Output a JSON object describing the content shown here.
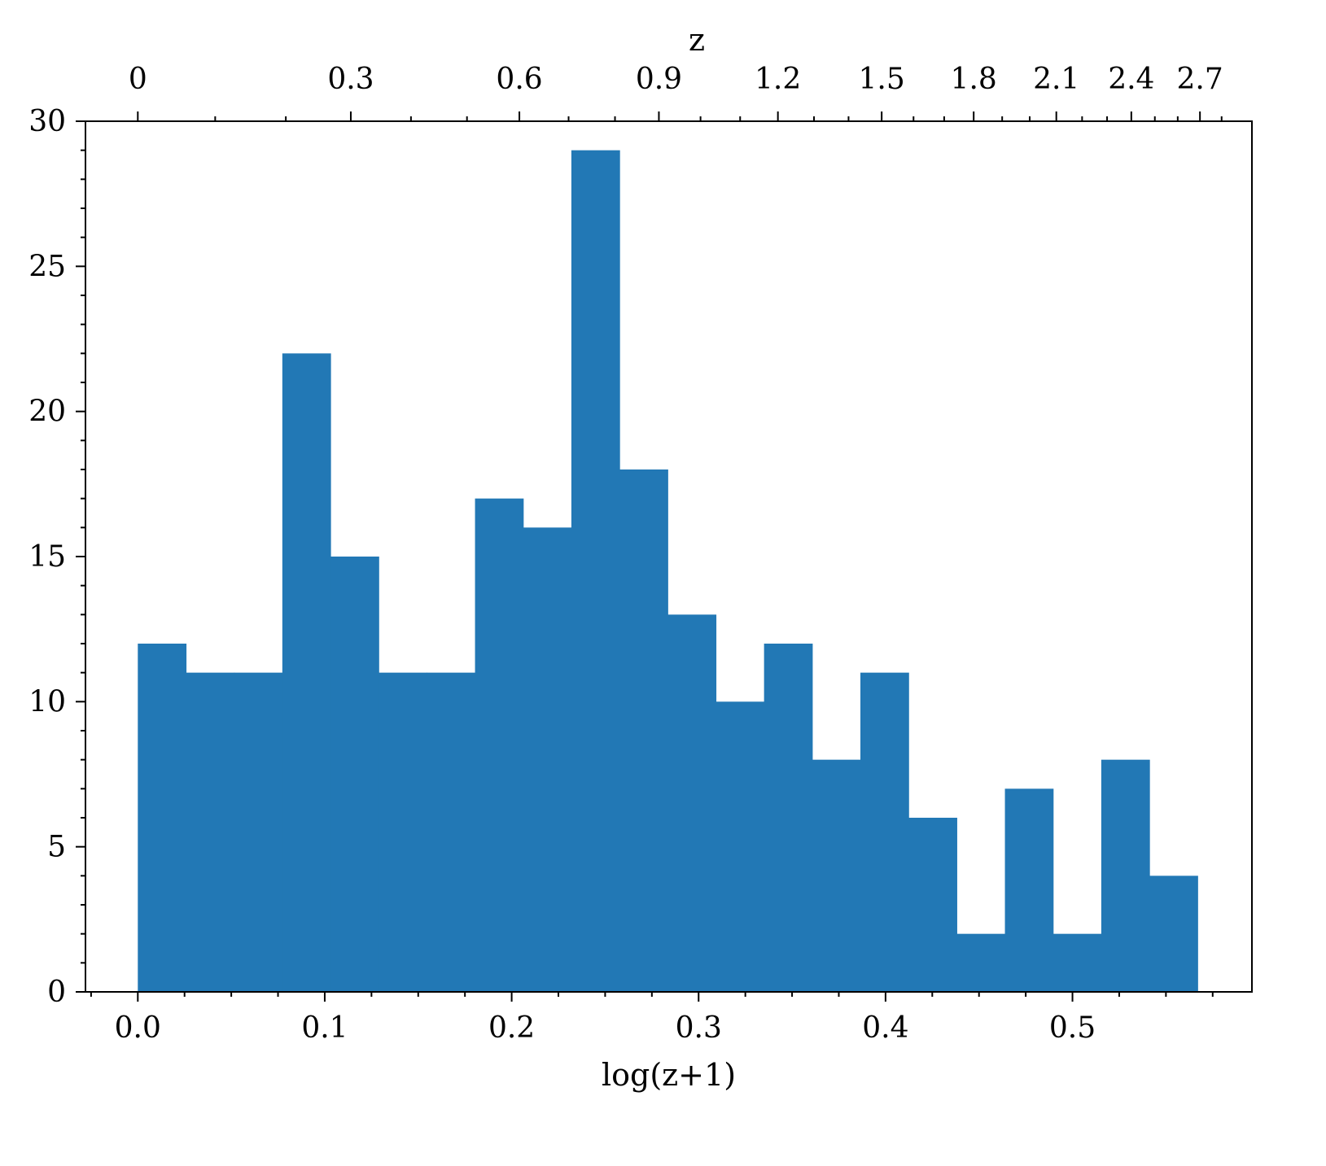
{
  "chart_data": {
    "type": "bar",
    "subtype": "histogram",
    "title": "",
    "xlabel": "log(z+1)",
    "ylabel": "",
    "top_xlabel": "z",
    "bar_color": "#2278b5",
    "xlim": [
      -0.028,
      0.596
    ],
    "ylim": [
      0,
      30
    ],
    "bin_edges": [
      0.0,
      0.02577,
      0.05154,
      0.07731,
      0.10308,
      0.12885,
      0.15462,
      0.18039,
      0.20616,
      0.23193,
      0.2577,
      0.28347,
      0.30924,
      0.33501,
      0.36078,
      0.38655,
      0.41232,
      0.43809,
      0.46386,
      0.48963,
      0.5154,
      0.54117,
      0.56694
    ],
    "counts": [
      12,
      11,
      11,
      22,
      15,
      11,
      11,
      17,
      16,
      29,
      18,
      13,
      10,
      12,
      8,
      11,
      6,
      2,
      7,
      2,
      8,
      4
    ],
    "x_ticks": [
      0.0,
      0.1,
      0.2,
      0.3,
      0.4,
      0.5
    ],
    "x_tick_labels": [
      "0.0",
      "0.1",
      "0.2",
      "0.3",
      "0.4",
      "0.5"
    ],
    "y_ticks": [
      0,
      5,
      10,
      15,
      20,
      25,
      30
    ],
    "y_tick_labels": [
      "0",
      "5",
      "10",
      "15",
      "20",
      "25",
      "30"
    ],
    "top_ticks": [
      0,
      0.3,
      0.6,
      0.9,
      1.2,
      1.5,
      1.8,
      2.1,
      2.4,
      2.7
    ],
    "top_tick_labels": [
      "0",
      "0.3",
      "0.6",
      "0.9",
      "1.2",
      "1.5",
      "1.8",
      "2.1",
      "2.4",
      "2.7"
    ],
    "grid": false,
    "legend": "none"
  }
}
